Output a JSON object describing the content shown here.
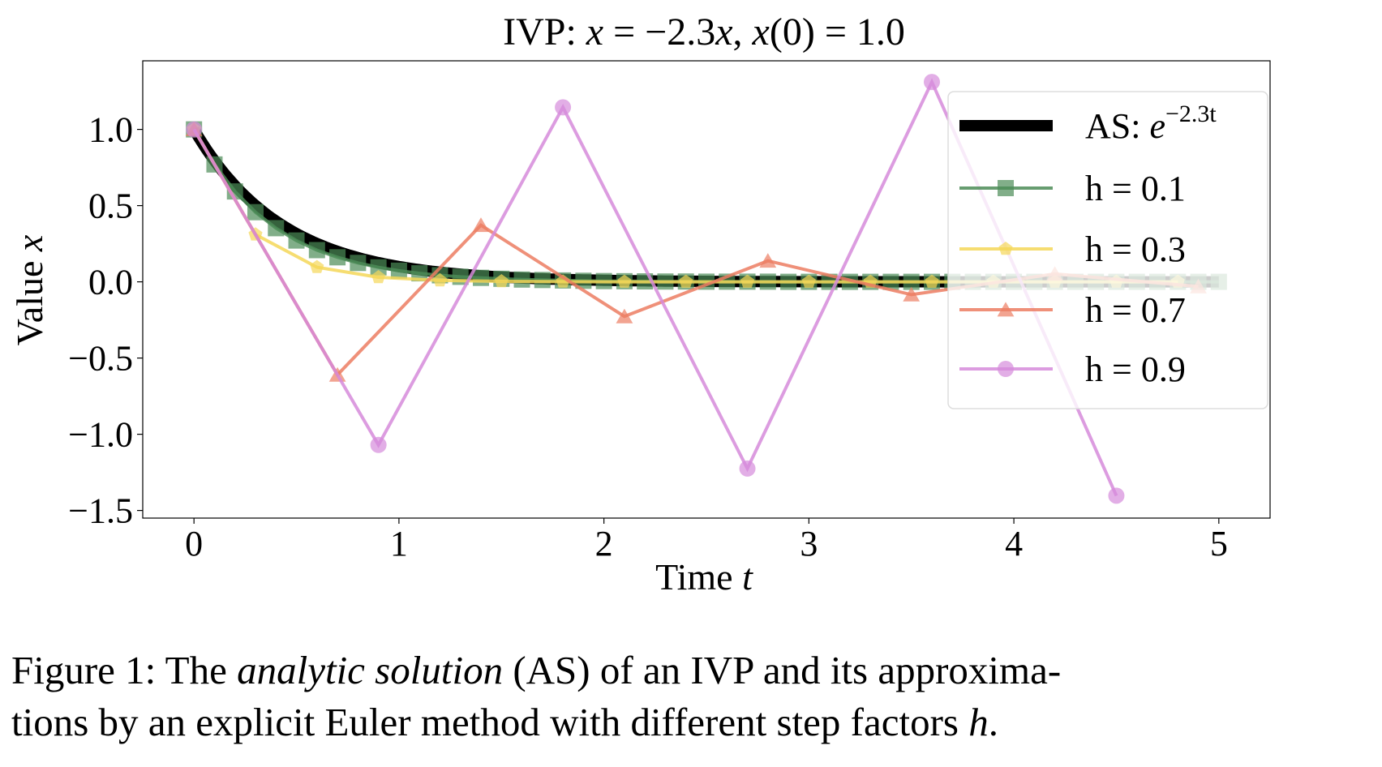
{
  "chart_data": {
    "type": "line",
    "title": {
      "prefix": "IVP: ",
      "xdot": "x",
      "eq1": " = −2.3",
      "x1": "x",
      "sep": ", ",
      "x2": "x",
      "args": "(0) = 1.0"
    },
    "xlabel": {
      "text": "Time ",
      "var": "t"
    },
    "ylabel": {
      "text": "Value ",
      "var": "x"
    },
    "xlim": [
      -0.25,
      5.25
    ],
    "ylim": [
      -1.55,
      1.45
    ],
    "xticks": [
      0,
      1,
      2,
      3,
      4,
      5
    ],
    "xtick_labels": [
      "0",
      "1",
      "2",
      "3",
      "4",
      "5"
    ],
    "yticks": [
      1.0,
      0.5,
      0.0,
      -0.5,
      -1.0,
      -1.5
    ],
    "ytick_labels": [
      "1.0",
      "0.5",
      "0.0",
      "−0.5",
      "−1.0",
      "−1.5"
    ],
    "grid": false,
    "legend_placement": "right",
    "analytic": {
      "legend_prefix": "AS: ",
      "legend_base": "e",
      "legend_exponent": "−2.3t",
      "rate": -2.3,
      "x0": 1.0,
      "t_end": 5.0,
      "color": "#000000"
    },
    "series": [
      {
        "name": "h = 0.1",
        "marker": "square",
        "color": "#4c8c57",
        "x": [
          0.0,
          0.1,
          0.2,
          0.3,
          0.4,
          0.5,
          0.6,
          0.7,
          0.8,
          0.9,
          1.0,
          1.1,
          1.2,
          1.3,
          1.4,
          1.5,
          1.6,
          1.7,
          1.8,
          1.9,
          2.0,
          2.1,
          2.2,
          2.3,
          2.4,
          2.5,
          2.6,
          2.7,
          2.8,
          2.9,
          3.0,
          3.1,
          3.2,
          3.3,
          3.4,
          3.5,
          3.6,
          3.7,
          3.8,
          3.9,
          4.0,
          4.1,
          4.2,
          4.3,
          4.4,
          4.5,
          4.6,
          4.7,
          4.8,
          4.9,
          5.0
        ],
        "y": [
          1.0,
          0.77,
          0.593,
          0.457,
          0.352,
          0.271,
          0.208,
          0.161,
          0.124,
          0.095,
          0.073,
          0.056,
          0.043,
          0.033,
          0.026,
          0.02,
          0.015,
          0.012,
          0.009,
          0.007,
          0.005,
          0.004,
          0.003,
          0.002,
          0.002,
          0.001,
          0.001,
          0.001,
          0.001,
          0.0,
          0.0,
          0.0,
          0.0,
          0.0,
          0.0,
          0.0,
          0.0,
          0.0,
          0.0,
          0.0,
          0.0,
          0.0,
          0.0,
          0.0,
          0.0,
          0.0,
          0.0,
          0.0,
          0.0,
          0.0,
          0.0
        ]
      },
      {
        "name": "h = 0.3",
        "marker": "pentagon",
        "color": "#f5d758",
        "x": [
          0.0,
          0.3,
          0.6,
          0.9,
          1.2,
          1.5,
          1.8,
          2.1,
          2.4,
          2.7,
          3.0,
          3.3,
          3.6,
          3.9,
          4.2,
          4.5,
          4.8
        ],
        "y": [
          1.0,
          0.31,
          0.096,
          0.03,
          0.009,
          0.003,
          0.001,
          0.0,
          0.0,
          0.0,
          0.0,
          0.0,
          0.0,
          0.0,
          0.0,
          0.0,
          0.0
        ]
      },
      {
        "name": "h = 0.7",
        "marker": "triangle",
        "color": "#ec7d62",
        "x": [
          0.0,
          0.7,
          1.4,
          2.1,
          2.8,
          3.5,
          4.2,
          4.9
        ],
        "y": [
          1.0,
          -0.61,
          0.372,
          -0.227,
          0.138,
          -0.084,
          0.052,
          -0.031
        ]
      },
      {
        "name": "h = 0.9",
        "marker": "circle",
        "color": "#d68bdb",
        "x": [
          0.0,
          0.9,
          1.8,
          2.7,
          3.6,
          4.5
        ],
        "y": [
          1.0,
          -1.07,
          1.145,
          -1.225,
          1.311,
          -1.403
        ]
      }
    ]
  },
  "caption": {
    "part1": "Figure 1: The ",
    "italic1": "analytic solution",
    "part2": " (AS) of an IVP and its approxima-",
    "part3": "tions by an explicit Euler method with different step factors ",
    "italic2": "h",
    "part4": "."
  }
}
